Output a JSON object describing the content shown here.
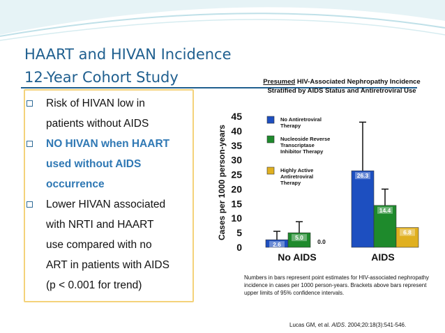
{
  "slide": {
    "title_line1": "HAART and HIVAN Incidence",
    "title_line2": "12-Year Cohort Study",
    "bullets": [
      {
        "text": "Risk of HIVAN low in\npatients without AIDS",
        "emphasis": false
      },
      {
        "text": "NO HIVAN when HAART\nused without AIDS\noccurrence",
        "emphasis": true
      },
      {
        "text": "Lower HIVAN associated\nwith NRTI and HAART\nuse compared with no\nART in patients with AIDS\n(p < 0.001 for trend)",
        "emphasis": false
      }
    ],
    "footnote": "Numbers in bars represent point estimates for HIV-associated nephropathy incidence in cases per 1000 person-years.  Brackets above bars represent upper limits of 95% confidence intervals.",
    "citation_prefix": "Lucas GM, et al. ",
    "citation_journal": "AIDS",
    "citation_suffix": ". 2004;20:18(3):541-546."
  },
  "chart_data": {
    "type": "bar",
    "title_emph": "Presumed",
    "title_rest": " HIV-Associated Nephropathy Incidence Stratified by AIDS Status and Antiretroviral Use",
    "ylabel": "Cases per 1000 person-years",
    "xlabel": "",
    "ylim": [
      0,
      45
    ],
    "yticks": [
      0,
      5,
      10,
      15,
      20,
      25,
      30,
      35,
      40,
      45
    ],
    "categories": [
      "No AIDS",
      "AIDS"
    ],
    "series": [
      {
        "name": "No Antiretroviral Therapy",
        "values": [
          2.6,
          26.3
        ],
        "upper_ci": [
          5.5,
          43
        ],
        "labels": [
          "2.6",
          "26.3"
        ],
        "color": "#1d4fc0"
      },
      {
        "name": "Nucleoside Reverse Transcriptase Inhibitor Therapy",
        "values": [
          5.0,
          14.4
        ],
        "upper_ci": [
          8.8,
          20
        ],
        "labels": [
          "5.0",
          "14.4"
        ],
        "color": "#1e8a2c"
      },
      {
        "name": "Highly Active Antiretroviral Therapy",
        "values": [
          0.0,
          6.8
        ],
        "upper_ci": [
          null,
          null
        ],
        "labels": [
          "0.0",
          "6.8"
        ],
        "color": "#e0b020"
      }
    ],
    "legend_position": "top-left"
  }
}
